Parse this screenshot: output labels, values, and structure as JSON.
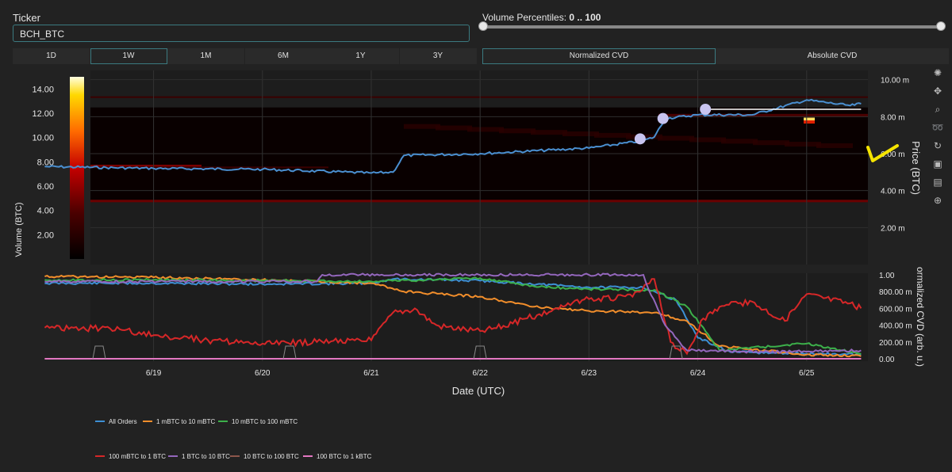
{
  "ticker": {
    "label": "Ticker",
    "value": "BCH_BTC"
  },
  "volume_percentiles": {
    "label": "Volume Percentiles:",
    "value": "0 .. 100"
  },
  "timeframes": [
    {
      "label": "1D",
      "active": false
    },
    {
      "label": "1W",
      "active": true
    },
    {
      "label": "1M",
      "active": false
    },
    {
      "label": "6M",
      "active": false
    },
    {
      "label": "1Y",
      "active": false
    },
    {
      "label": "3Y",
      "active": false
    }
  ],
  "cvd_modes": [
    {
      "label": "Normalized CVD",
      "active": true
    },
    {
      "label": "Absolute CVD",
      "active": false
    }
  ],
  "toolbar_icons": [
    "plotly-logo-icon",
    "pan-icon",
    "zoom-icon",
    "lasso-select-icon",
    "reset-axes-icon",
    "save-image-icon",
    "hover-data-icon",
    "spike-lines-icon"
  ],
  "colorbar": {
    "title": "Volume (BTC)",
    "ticks": [
      "2.00",
      "4.00",
      "6.00",
      "8.00",
      "10.00",
      "12.00",
      "14.00"
    ]
  },
  "chart_data": [
    {
      "type": "line",
      "title": "",
      "ylabel": "Price (BTC)",
      "ylim": [
        0,
        0.0105
      ],
      "yticks": [
        "2.00 m",
        "4.00 m",
        "6.00 m",
        "8.00 m",
        "10.00 m"
      ],
      "heatmap": "volume heatmap by price level, bright spot near 7.9 m on 6/25",
      "series": [
        {
          "name": "",
          "color": "#4a8fd0",
          "x": [
            "6/18",
            "6/19",
            "6/20",
            "6/21",
            "6/21.2",
            "6/21.3",
            "6/22",
            "6/23",
            "6/23.5",
            "6/23.6",
            "6/23.7",
            "6/24",
            "6/24.5",
            "6/25",
            "6/25.4",
            "6/25.5"
          ],
          "y": [
            5.3,
            5.2,
            5.15,
            4.95,
            5.0,
            5.9,
            6.0,
            6.3,
            6.7,
            6.9,
            7.9,
            8.1,
            8.1,
            8.9,
            8.6,
            8.7
          ]
        }
      ],
      "markers": [
        {
          "x": "6/23.47",
          "y": 6.8
        },
        {
          "x": "6/23.68",
          "y": 7.9
        },
        {
          "x": "6/24.07",
          "y": 8.4
        }
      ],
      "reference_line": {
        "from": "6/24.07",
        "to": "6/25.5",
        "y": 8.4
      }
    },
    {
      "type": "line",
      "xlabel": "Date (UTC)",
      "ylabel": "Normalized CVD (arb. u.)",
      "ylabel_visible": "ormalized CVD (arb. u.)",
      "ylim": [
        0,
        1
      ],
      "yticks": [
        "0.00",
        "200.00 m",
        "400.00 m",
        "600.00 m",
        "800.00 m",
        "1.00"
      ],
      "xticks": [
        "6/19",
        "6/20",
        "6/21",
        "6/22",
        "6/23",
        "6/24",
        "6/25"
      ],
      "series": [
        {
          "name": "All Orders",
          "color": "#3d8fd4",
          "x": [
            18.0,
            19,
            20,
            21,
            21.2,
            22,
            23,
            23.5,
            23.8,
            24,
            24.3,
            25,
            25.5
          ],
          "y": [
            0.9,
            0.9,
            0.89,
            0.9,
            0.95,
            0.93,
            0.85,
            0.85,
            0.7,
            0.25,
            0.08,
            0.06,
            0.05
          ]
        },
        {
          "name": "1 mBTC to 10 mBTC",
          "color": "#f28e2b",
          "x": [
            18.0,
            19,
            20,
            21,
            21.3,
            22,
            22.5,
            23,
            23.6,
            23.9,
            24.2,
            25,
            25.5
          ],
          "y": [
            0.98,
            0.97,
            0.94,
            0.9,
            0.8,
            0.74,
            0.62,
            0.57,
            0.55,
            0.45,
            0.15,
            0.05,
            0.03
          ]
        },
        {
          "name": "10 mBTC to 100 mBTC",
          "color": "#3cb04a",
          "x": [
            18.0,
            19,
            20,
            21,
            22,
            22.5,
            23,
            23.6,
            23.9,
            24.2,
            24.6,
            25,
            25.5
          ],
          "y": [
            0.94,
            0.94,
            0.93,
            0.92,
            0.96,
            0.86,
            0.83,
            0.82,
            0.62,
            0.1,
            0.14,
            0.18,
            0.06
          ]
        },
        {
          "name": "100 mBTC to 1 BTC",
          "color": "#d62728",
          "x": [
            18.0,
            18.6,
            19,
            19.5,
            20,
            20.5,
            21,
            21.2,
            21.4,
            21.6,
            22,
            22.3,
            22.7,
            23,
            23.4,
            23.6,
            23.75,
            23.9,
            24.05,
            24.2,
            24.5,
            24.8,
            25,
            25.4,
            25.5
          ],
          "y": [
            0.37,
            0.36,
            0.28,
            0.22,
            0.18,
            0.2,
            0.22,
            0.55,
            0.6,
            0.4,
            0.33,
            0.42,
            0.6,
            0.71,
            0.74,
            0.95,
            0.2,
            0.06,
            0.48,
            0.62,
            0.68,
            0.45,
            0.77,
            0.66,
            0.6
          ]
        },
        {
          "name": "1 BTC to 10 BTC",
          "color": "#9467bd",
          "x": [
            18.0,
            20.5,
            20.55,
            23.5,
            23.55,
            23.7,
            23.9,
            24.6,
            25.5
          ],
          "y": [
            0.92,
            0.92,
            1.0,
            1.0,
            0.82,
            0.4,
            0.1,
            0.08,
            0.1
          ]
        },
        {
          "name": "10 BTC to 100 BTC",
          "color": "#8c564b",
          "x": [
            18.0,
            25.5
          ],
          "y": [
            0,
            0
          ]
        },
        {
          "name": "100 BTC to 1 kBTC",
          "color": "#e377c2",
          "x": [
            18.0,
            25.5
          ],
          "y": [
            0,
            0
          ]
        }
      ]
    }
  ]
}
